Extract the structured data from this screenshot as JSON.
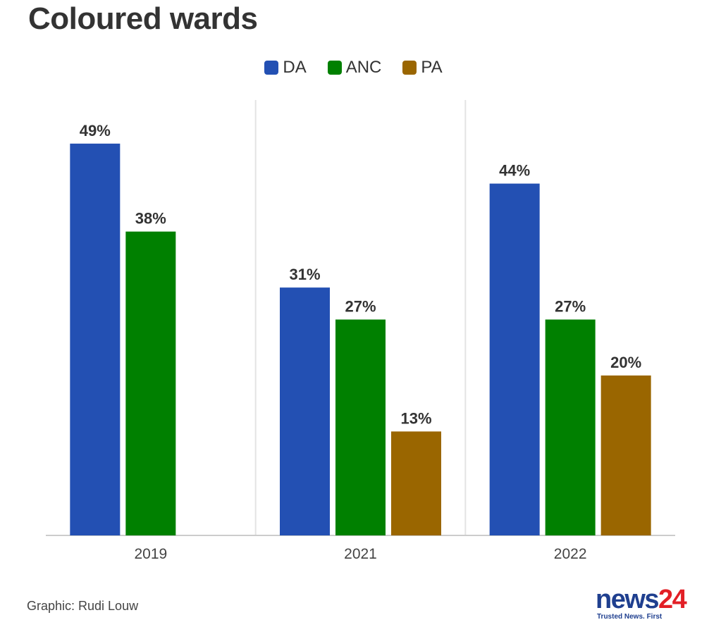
{
  "title": "Coloured wards",
  "credit": "Graphic: Rudi Louw",
  "logo": {
    "word": "news",
    "number": "24",
    "tagline": "Trusted News. First"
  },
  "colors": {
    "DA": "#2350b3",
    "ANC": "#008000",
    "PA": "#9a6600",
    "grid": "#e3e3e3",
    "axis": "#cccccc"
  },
  "chart_data": {
    "type": "bar",
    "categories": [
      "2019",
      "2021",
      "2022"
    ],
    "series": [
      {
        "name": "DA",
        "values": [
          49,
          31,
          44
        ],
        "labels": [
          "49%",
          "31%",
          "44%"
        ]
      },
      {
        "name": "ANC",
        "values": [
          38,
          27,
          27
        ],
        "labels": [
          "38%",
          "27%",
          "27%"
        ]
      },
      {
        "name": "PA",
        "values": [
          null,
          13,
          20
        ],
        "labels": [
          "",
          "13%",
          "20%"
        ]
      }
    ],
    "ylim": [
      0,
      49
    ],
    "unit": "%",
    "legend": "top-center",
    "grid": false
  }
}
